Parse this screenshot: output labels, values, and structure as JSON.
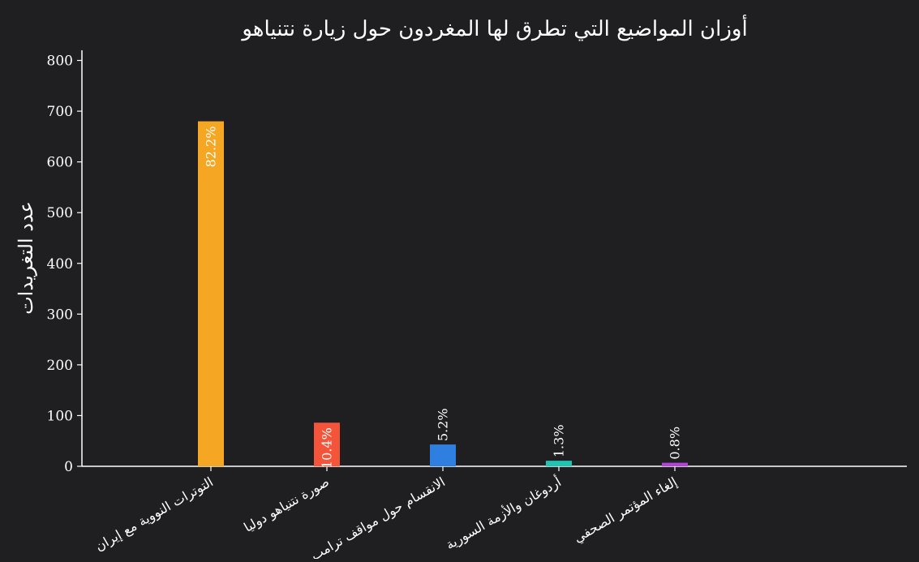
{
  "chart_data": {
    "type": "bar",
    "title": "أوزان المواضيع التي تطرق لها المغردون حول زيارة نتنياهو",
    "xlabel": "",
    "ylabel": "عدد التغريدات",
    "ylim": [
      0,
      820
    ],
    "yticks": [
      0,
      100,
      200,
      300,
      400,
      500,
      600,
      700,
      800
    ],
    "grid": false,
    "categories": [
      "التوترات النووية مع إيران",
      "صورة نتنياهو دوليا",
      "الانقسام حول مواقف ترامب",
      "أردوغان والأزمة السورية",
      "إلغاء المؤتمر الصحفي"
    ],
    "values": [
      680,
      86,
      43,
      11,
      7
    ],
    "labels": [
      "82.2%",
      "10.4%",
      "5.2%",
      "1.3%",
      "0.8%"
    ],
    "colors": [
      "#f5a623",
      "#f4553a",
      "#2f7fe0",
      "#1fc4b3",
      "#b344d6"
    ]
  },
  "colors": {
    "background": "#1f1f21",
    "axis": "#ffffff",
    "text": "#ffffff"
  }
}
